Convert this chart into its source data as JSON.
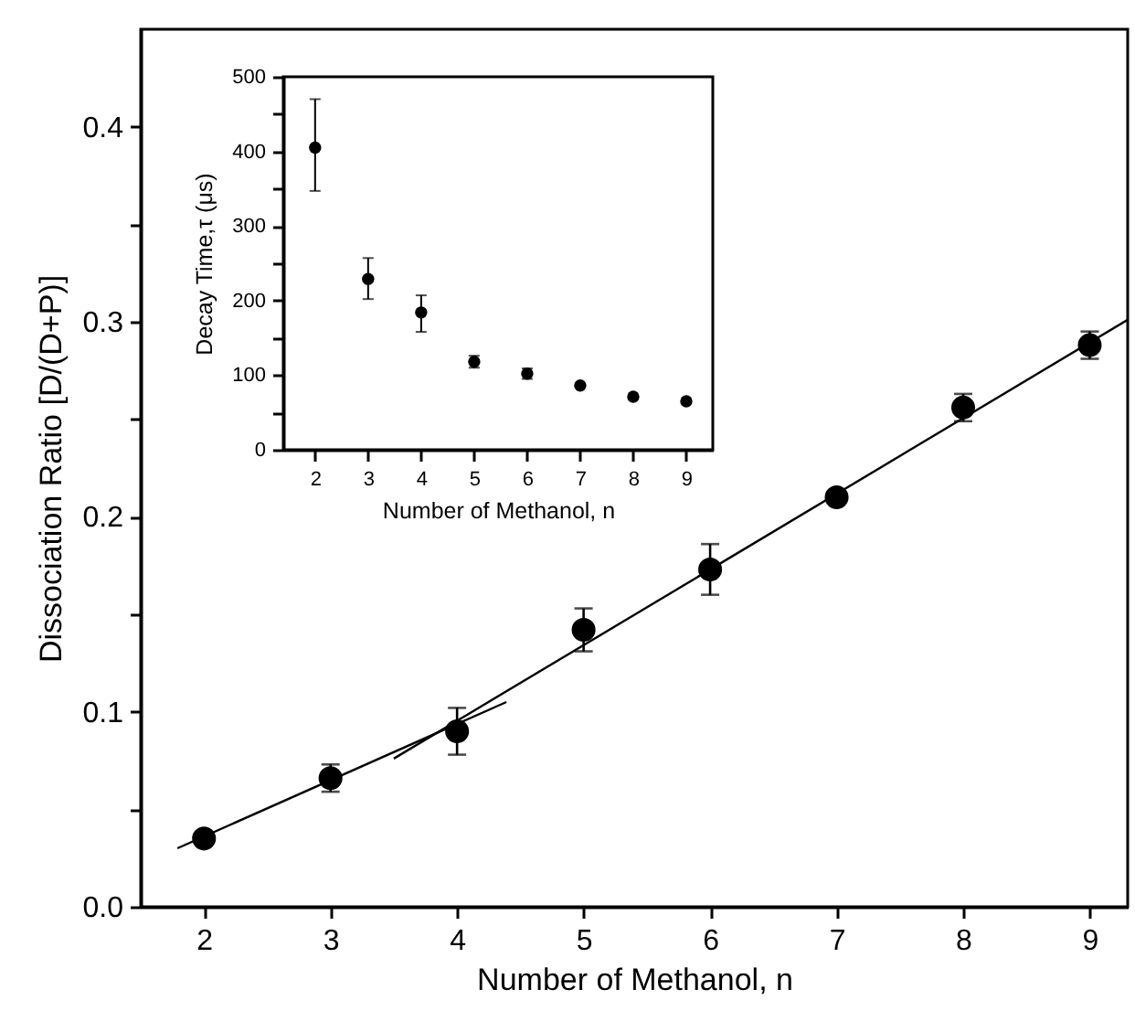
{
  "chart_data": [
    {
      "type": "scatter",
      "xlabel": "Number of Methanol, n",
      "ylabel": "Dissociation Ratio [D/(D+P)]",
      "x": [
        2,
        3,
        4,
        5,
        6,
        7,
        8,
        9
      ],
      "xlim": [
        1.5,
        9.3
      ],
      "ylim": [
        0,
        0.45
      ],
      "xticks": [
        2,
        3,
        4,
        5,
        6,
        7,
        8,
        9
      ],
      "yticks": [
        {
          "value": 0,
          "label": "0.0"
        },
        {
          "value": 0.05,
          "label": null
        },
        {
          "value": 0.1,
          "label": "0.1"
        },
        {
          "value": 0.15,
          "label": null
        },
        {
          "value": 0.2,
          "label": "0.2"
        },
        {
          "value": 0.25,
          "label": null
        },
        {
          "value": 0.3,
          "label": "0.3"
        },
        {
          "value": 0.35,
          "label": null
        },
        {
          "value": 0.4,
          "label": "0.4"
        }
      ],
      "series": [
        {
          "marker": "circle",
          "color": "#000000",
          "values": [
            0.035,
            0.066,
            0.09,
            0.142,
            0.173,
            0.21,
            0.256,
            0.288
          ],
          "errors": [
            0.003,
            0.007,
            0.012,
            0.011,
            0.013,
            0.002,
            0.007,
            0.007
          ]
        },
        {
          "type": "line",
          "color": "#000000",
          "x": [
            1.79,
            4.39
          ],
          "values": [
            0.03,
            0.105
          ]
        },
        {
          "type": "line",
          "color": "#000000",
          "x": [
            3.5,
            9.3
          ],
          "values": [
            0.076,
            0.301
          ]
        }
      ]
    },
    {
      "type": "scatter",
      "xlabel": "Number of Methanol, n",
      "ylabel": "Decay Time,τ (μs)",
      "x": [
        2,
        3,
        4,
        5,
        6,
        7,
        8,
        9
      ],
      "xlim": [
        1.4,
        9.5
      ],
      "ylim": [
        0,
        500
      ],
      "xticks": [
        2,
        3,
        4,
        5,
        6,
        7,
        8,
        9
      ],
      "yticks": [
        0,
        {
          "value": 50,
          "label": null
        },
        100,
        {
          "value": 150,
          "label": null
        },
        200,
        {
          "value": 250,
          "label": null
        },
        300,
        {
          "value": 350,
          "label": null
        },
        400,
        {
          "value": 450,
          "label": null
        },
        500
      ],
      "series": [
        {
          "marker": "circle",
          "color": "#000000",
          "values": [
            405,
            229,
            184,
            118,
            102,
            86,
            71,
            65
          ],
          "errors": [
            [
              347,
              470
            ],
            [
              202,
              257
            ],
            [
              158,
              207
            ],
            8,
            7,
            null,
            null,
            null
          ]
        }
      ]
    }
  ]
}
